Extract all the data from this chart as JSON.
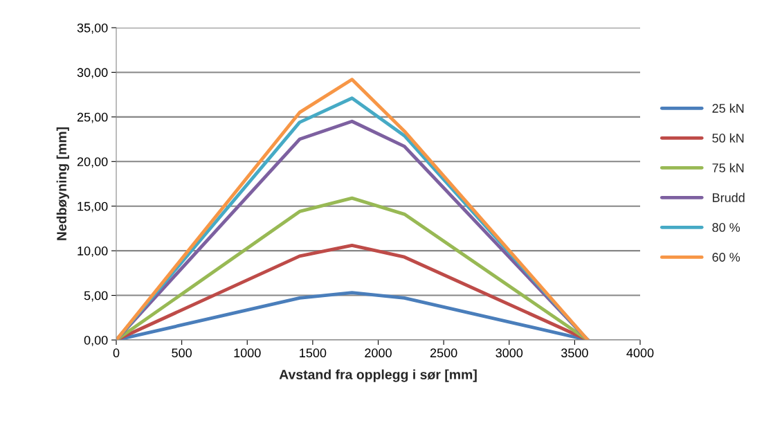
{
  "chart_data": {
    "type": "line",
    "xlabel": "Avstand fra opplegg i sør [mm]",
    "ylabel": "Nedbøyning [mm]",
    "x": [
      0,
      1400,
      1800,
      2200,
      3600
    ],
    "series": [
      {
        "name": "25 kN",
        "color": "#4a7ebb",
        "values": [
          0,
          4.7,
          5.3,
          4.7,
          0
        ]
      },
      {
        "name": "50 kN",
        "color": "#be4b48",
        "values": [
          0,
          9.4,
          10.6,
          9.3,
          0
        ]
      },
      {
        "name": "75 kN",
        "color": "#98b954",
        "values": [
          0,
          14.4,
          15.9,
          14.1,
          0
        ]
      },
      {
        "name": "Brudd",
        "color": "#7d60a0",
        "values": [
          0,
          22.5,
          24.5,
          21.7,
          0
        ]
      },
      {
        "name": "80 %",
        "color": "#46aac5",
        "values": [
          0,
          24.4,
          27.1,
          22.9,
          0
        ]
      },
      {
        "name": "60 %",
        "color": "#f79646",
        "values": [
          0,
          25.5,
          29.2,
          23.4,
          0
        ]
      }
    ],
    "xlim": [
      0,
      4000
    ],
    "xticks": [
      0,
      500,
      1000,
      1500,
      2000,
      2500,
      3000,
      3500,
      4000
    ],
    "ylim": [
      0,
      35
    ],
    "yticks": [
      {
        "value": 0,
        "label": "0,00"
      },
      {
        "value": 5,
        "label": "5,00"
      },
      {
        "value": 10,
        "label": "10,00"
      },
      {
        "value": 15,
        "label": "15,00"
      },
      {
        "value": 20,
        "label": "20,00"
      },
      {
        "value": 25,
        "label": "25,00"
      },
      {
        "value": 30,
        "label": "30,00"
      },
      {
        "value": 35,
        "label": "35,00"
      }
    ],
    "grid": "y",
    "legend": "right",
    "marker": "none",
    "line_style": "solid"
  }
}
